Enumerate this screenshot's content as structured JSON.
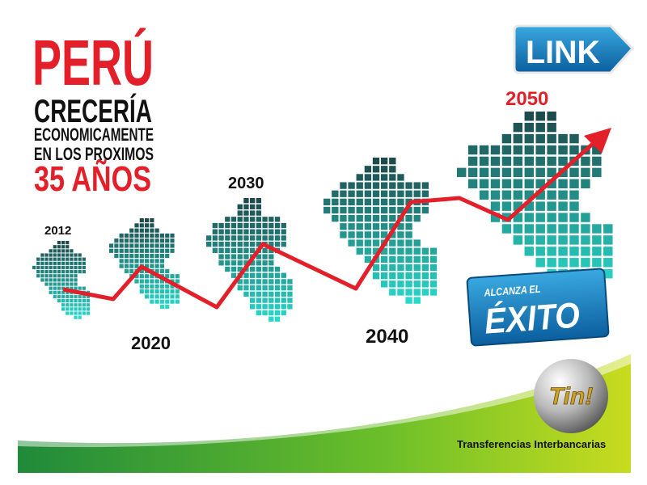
{
  "title": {
    "line1": "PERÚ",
    "line2": "CRECERÍA",
    "line3": "ECONOMICAMENTE",
    "line4": "EN LOS PROXIMOS",
    "line5": "35 AÑOS"
  },
  "link_button": "LINK",
  "years": [
    "2012",
    "2020",
    "2030",
    "2040",
    "2050"
  ],
  "badge": {
    "line1": "ALCANZA EL",
    "line2": "ÉXITO"
  },
  "logo": "Tin!",
  "tagline": "Transferencias Interbancarias"
}
